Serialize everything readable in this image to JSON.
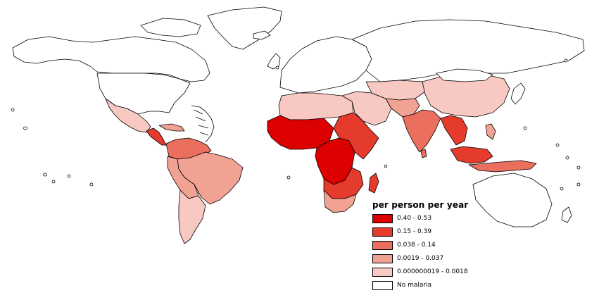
{
  "legend": {
    "title": "per person per year",
    "items": [
      {
        "label": "0.40 - 0.53",
        "color": "#dd0000"
      },
      {
        "label": "0.15 - 0.39",
        "color": "#e43b2d"
      },
      {
        "label": "0.038 - 0.14",
        "color": "#eb6f5f"
      },
      {
        "label": "0.0019 - 0.037",
        "color": "#f2a293"
      },
      {
        "label": "0.000000019 - 0.0018",
        "color": "#f8c8c2"
      },
      {
        "label": "No malaria",
        "color": "#ffffff"
      }
    ]
  }
}
